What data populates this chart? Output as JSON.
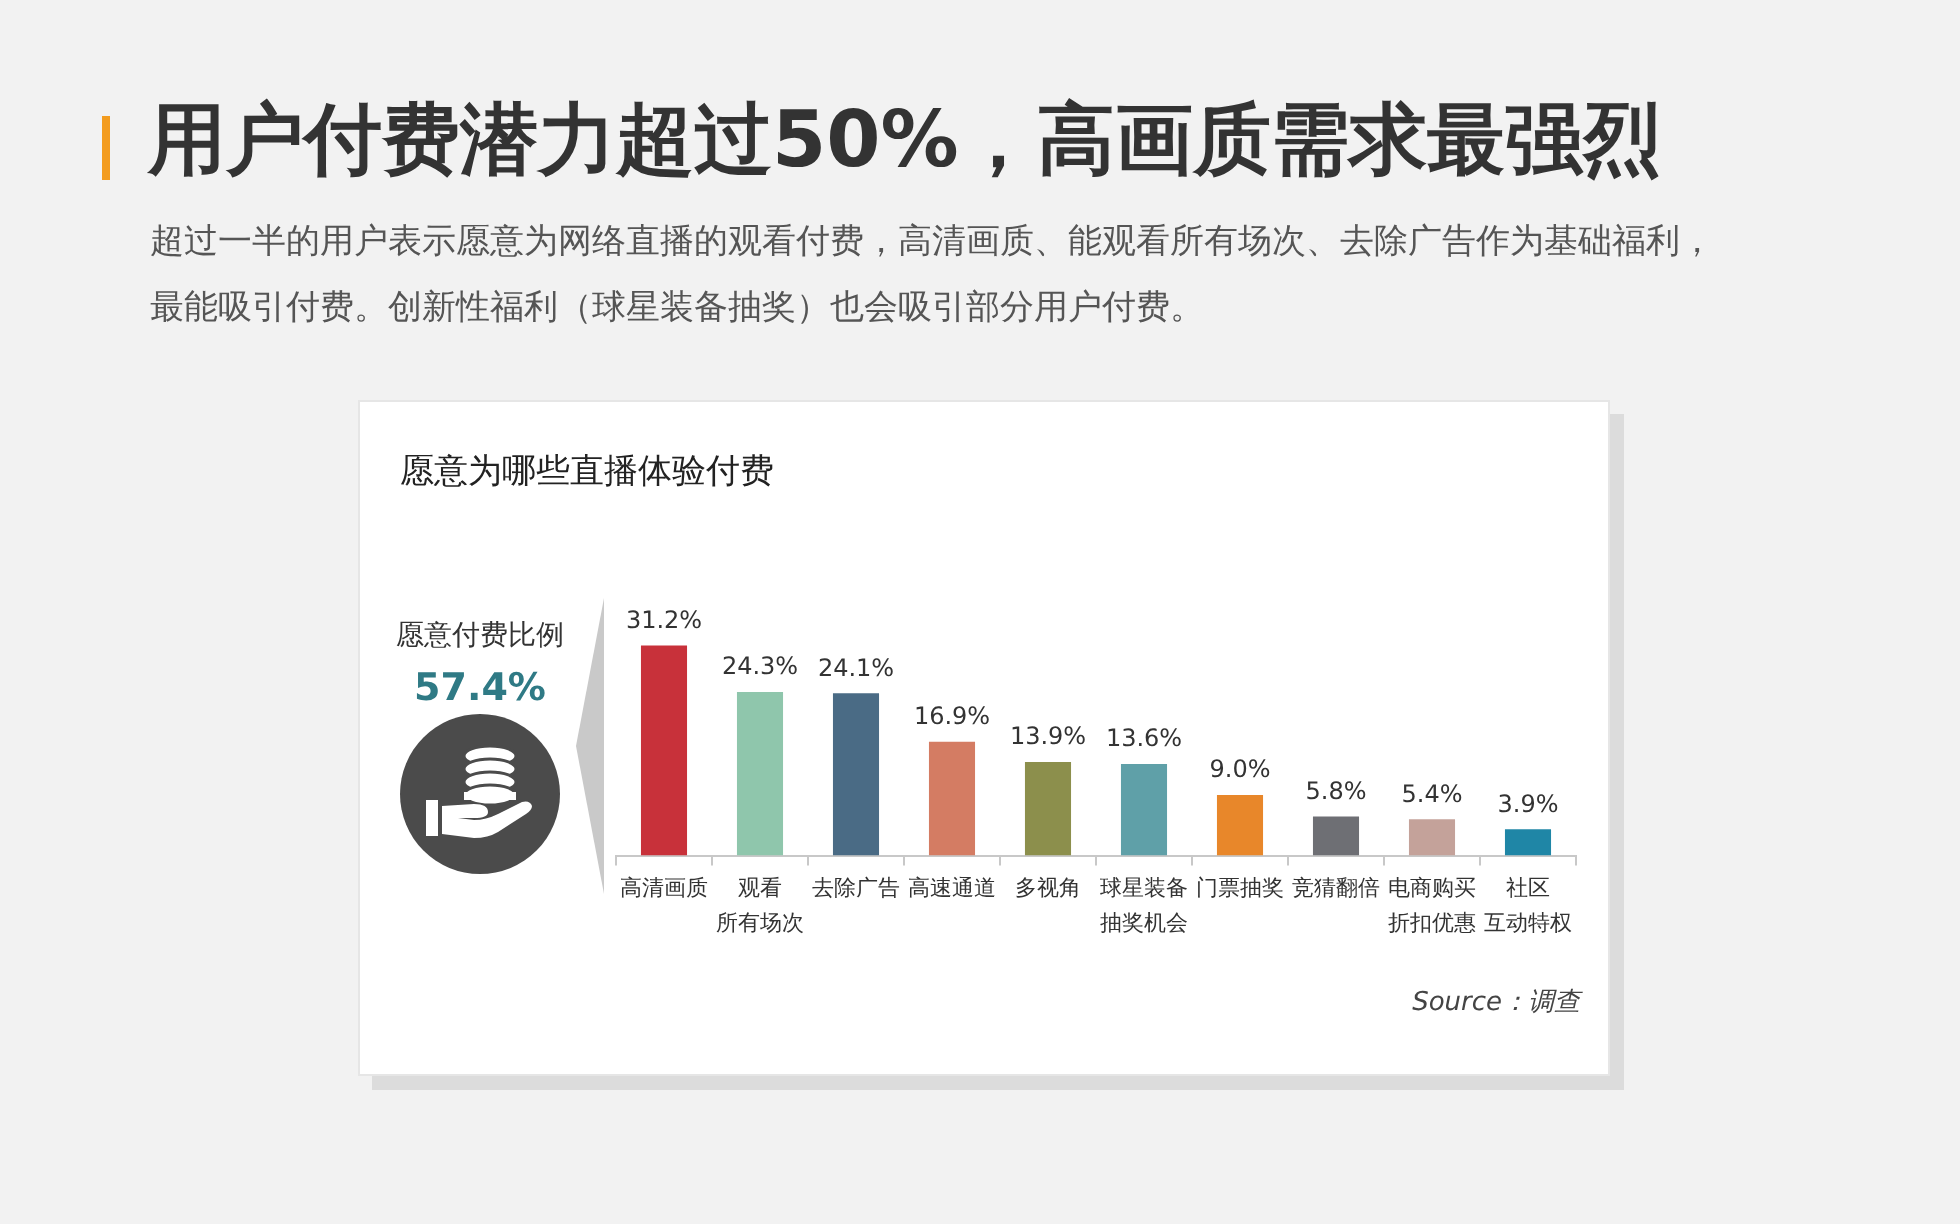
{
  "chart_data": {
    "type": "bar",
    "title": "用户付费潜力超过50%，高画质需求最强烈",
    "subtitle": "超过一半的用户表示愿意为网络直播的观看付费，高清画质、能观看所有场次、去除广告作为基础福利，最能吸引付费。创新性福利（球星装备抽奖）也会吸引部分用户付费。",
    "annotations": [
      "愿意为哪些直播体验付费",
      "愿意付费比例",
      "57.4%",
      "Source：调查"
    ],
    "categories": [
      "高清画质",
      "观看所有场次",
      "去除广告",
      "高速通道",
      "多视角",
      "球星装备抽奖机会",
      "门票抽奖",
      "竞猜翻倍",
      "电商购买折扣优惠",
      "社区互动特权"
    ],
    "values": [
      31.2,
      24.3,
      24.1,
      16.9,
      13.9,
      13.6,
      9.0,
      5.8,
      5.4,
      3.9
    ],
    "colors": [
      "#c8313a",
      "#8fc6ac",
      "#4a6b85",
      "#d47c63",
      "#8c8f4c",
      "#5fa0a8",
      "#e8872a",
      "#6e6f74",
      "#c4a29a",
      "#1f86a6"
    ],
    "value_labels": [
      "31.2%",
      "24.3%",
      "24.1%",
      "16.9%",
      "13.9%",
      "13.6%",
      "9.0%",
      "5.8%",
      "5.4%",
      "3.9%"
    ]
  }
}
